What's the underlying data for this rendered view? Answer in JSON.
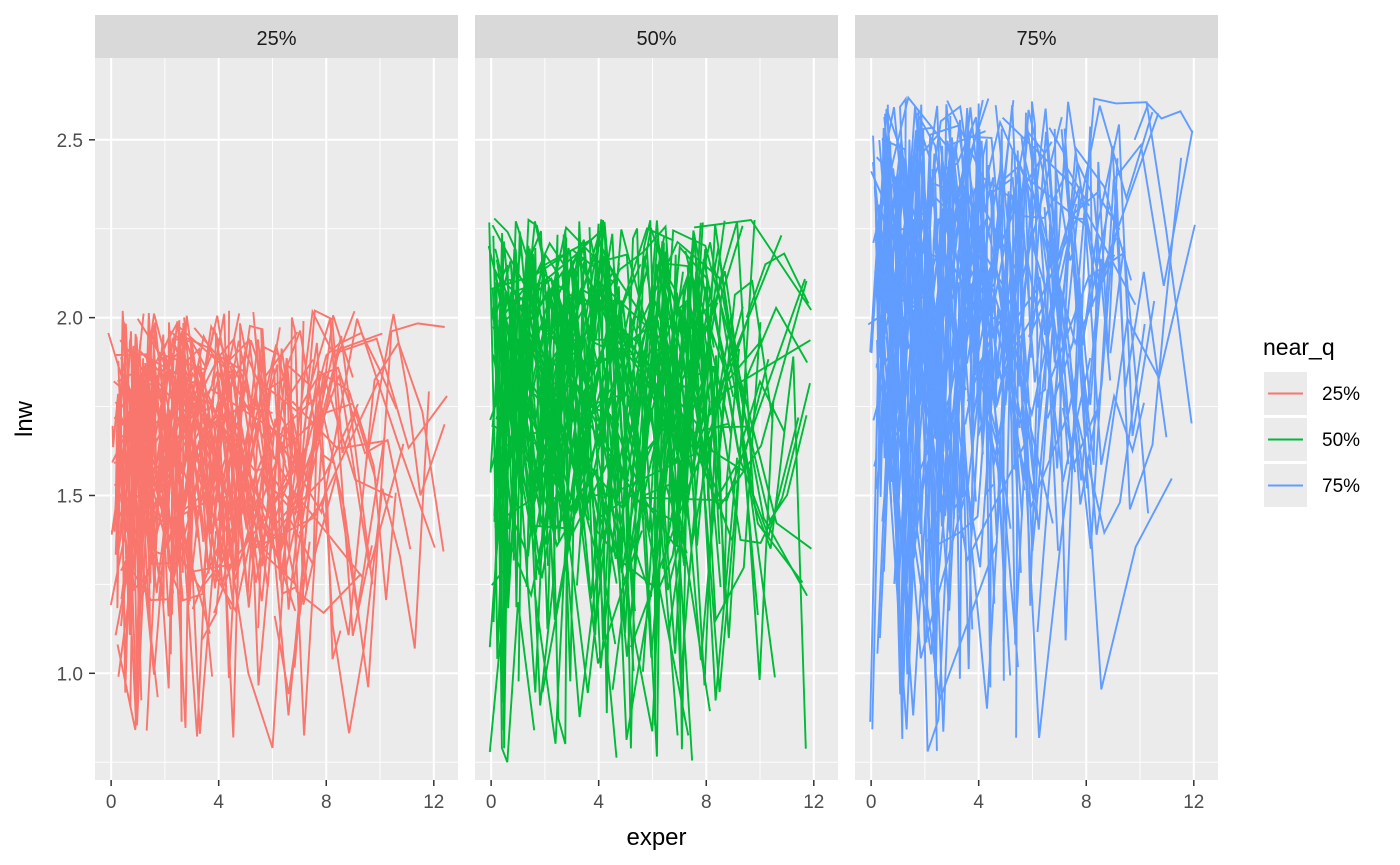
{
  "chart_data": {
    "type": "line",
    "facet_var": "near_q",
    "facets": [
      "25%",
      "50%",
      "75%"
    ],
    "xlabel": "exper",
    "ylabel": "lnw",
    "xlim": [
      -0.6,
      12.9
    ],
    "ylim": [
      0.7,
      2.73
    ],
    "x_ticks": [
      0,
      4,
      8,
      12
    ],
    "y_ticks": [
      1.0,
      1.5,
      2.0,
      2.5
    ],
    "x_tick_labels": [
      "0",
      "4",
      "8",
      "12"
    ],
    "y_tick_labels": [
      "1.0",
      "1.5",
      "2.0",
      "2.5"
    ],
    "grid": true,
    "legend": {
      "title": "near_q",
      "position": "right",
      "entries": [
        {
          "label": "25%",
          "color": "#F8766D"
        },
        {
          "label": "50%",
          "color": "#00BA38"
        },
        {
          "label": "75%",
          "color": "#619CFF"
        }
      ]
    },
    "series": [
      {
        "name": "25%",
        "color": "#F8766D",
        "y_range": [
          0.79,
          2.02
        ],
        "x_max": 12.4,
        "count": 120,
        "extra_lines": [
          {
            "x": [
              9.5,
              10.5,
              11.0,
              11.5,
              12.4
            ],
            "y": [
              1.6,
              2.01,
              1.8,
              1.5,
              1.7
            ]
          },
          {
            "x": [
              6.2,
              6.9,
              7.9,
              9.3
            ],
            "y": [
              1.5,
              1.23,
              1.17,
              1.28
            ]
          },
          {
            "x": [
              4.3,
              5.1,
              6.0,
              6.6
            ],
            "y": [
              1.4,
              1.0,
              0.79,
              1.5
            ]
          },
          {
            "x": [
              2.9,
              3.3,
              3.9
            ],
            "y": [
              1.5,
              0.83,
              1.4
            ]
          }
        ]
      },
      {
        "name": "50%",
        "color": "#00BA38",
        "y_range": [
          0.75,
          2.28
        ],
        "x_max": 11.8,
        "count": 140,
        "extra_lines": [
          {
            "x": [
              0.2,
              0.4,
              0.6,
              1.0,
              1.6
            ],
            "y": [
              2.1,
              0.79,
              0.75,
              1.2,
              0.84
            ]
          },
          {
            "x": [
              9.5,
              10.2,
              10.9,
              11.8
            ],
            "y": [
              2.0,
              2.15,
              2.18,
              2.04
            ]
          },
          {
            "x": [
              8.6,
              9.2,
              10.0,
              10.9
            ],
            "y": [
              1.88,
              1.62,
              1.82,
              1.68
            ]
          }
        ]
      },
      {
        "name": "75%",
        "color": "#619CFF",
        "y_range": [
          0.78,
          2.62
        ],
        "x_max": 11.95,
        "count": 120,
        "extra_lines": [
          {
            "x": [
              1.6,
              2.1,
              2.5,
              2.9
            ],
            "y": [
              2.2,
              0.78,
              0.87,
              1.5
            ]
          },
          {
            "x": [
              9.8,
              10.3,
              10.8,
              11.5,
              11.95
            ],
            "y": [
              2.5,
              2.6,
              2.56,
              2.58,
              2.52
            ]
          },
          {
            "x": [
              8.9,
              9.4,
              10.3
            ],
            "y": [
              1.9,
              2.2,
              1.45
            ]
          }
        ]
      }
    ]
  }
}
